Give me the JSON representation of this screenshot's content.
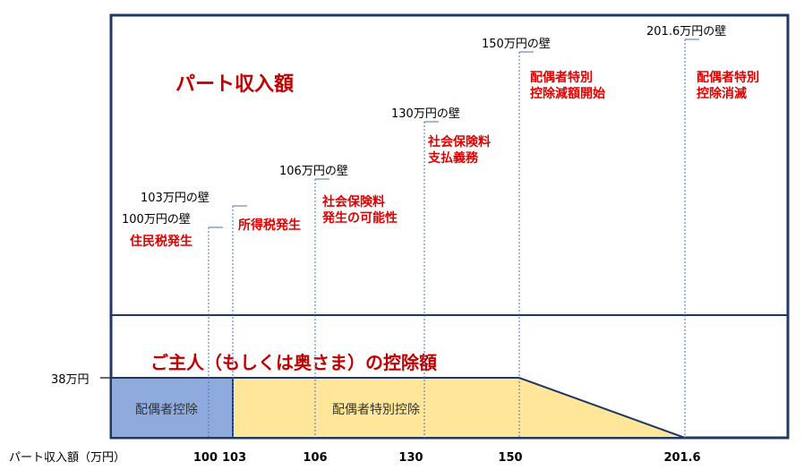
{
  "upper_title": "パート収入額",
  "lower_title": "ご主人（もしくは奥さま）の控除額",
  "y_label": "38万円",
  "x_axis_label": "パート収入額（万円）",
  "x_ticks": [
    "100",
    "103",
    "106",
    "130",
    "150",
    "201.6"
  ],
  "walls": [
    {
      "value": 100,
      "label": "100万円の壁",
      "note_lines": [
        "住民税発生"
      ]
    },
    {
      "value": 103,
      "label": "103万円の壁",
      "note_lines": [
        "所得税発生"
      ]
    },
    {
      "value": 106,
      "label": "106万円の壁",
      "note_lines": [
        "社会保険料",
        "発生の可能性"
      ]
    },
    {
      "value": 130,
      "label": "130万円の壁",
      "note_lines": [
        "社会保険料",
        "支払義務"
      ]
    },
    {
      "value": 150,
      "label": "150万円の壁",
      "note_lines": [
        "配偶者特別",
        "控除減額開始"
      ]
    },
    {
      "value": 201.6,
      "label": "201.6万円の壁",
      "note_lines": [
        "配偶者特別",
        "控除消滅"
      ]
    }
  ],
  "blocks": {
    "haigusha_label": "配偶者控除",
    "tokubetsu_label": "配偶者特別控除"
  },
  "colors": {
    "frame": "#1f3864",
    "note_red": "#e00000",
    "title_red": "#c00000",
    "haigusha_fill": "#8faadc",
    "tokubetsu_fill": "#ffe699",
    "dotted_line": "#4472c4"
  }
}
